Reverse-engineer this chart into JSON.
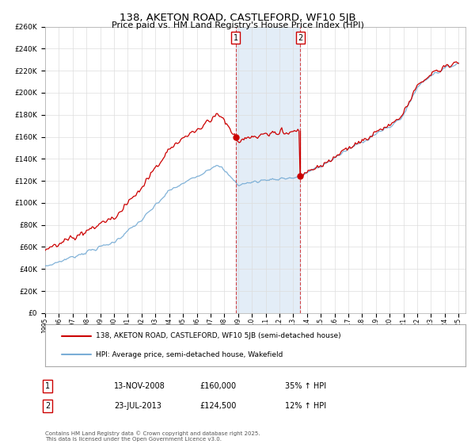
{
  "title": "138, AKETON ROAD, CASTLEFORD, WF10 5JB",
  "subtitle": "Price paid vs. HM Land Registry's House Price Index (HPI)",
  "legend_line1": "138, AKETON ROAD, CASTLEFORD, WF10 5JB (semi-detached house)",
  "legend_line2": "HPI: Average price, semi-detached house, Wakefield",
  "transaction_color": "#cc0000",
  "hpi_color": "#7aaed6",
  "transaction1_date": "13-NOV-2008",
  "transaction1_price": 160000,
  "transaction1_pct": "35% ↑ HPI",
  "transaction2_date": "23-JUL-2013",
  "transaction2_price": 124500,
  "transaction2_pct": "12% ↑ HPI",
  "footnote": "Contains HM Land Registry data © Crown copyright and database right 2025.\nThis data is licensed under the Open Government Licence v3.0.",
  "ylim": [
    0,
    260000
  ],
  "ytick_step": 20000,
  "background_color": "#ffffff",
  "plot_bg_color": "#ffffff",
  "grid_color": "#dddddd",
  "shading_color": "#dce9f5",
  "vline_color": "#cc0000",
  "vline_style": "--"
}
